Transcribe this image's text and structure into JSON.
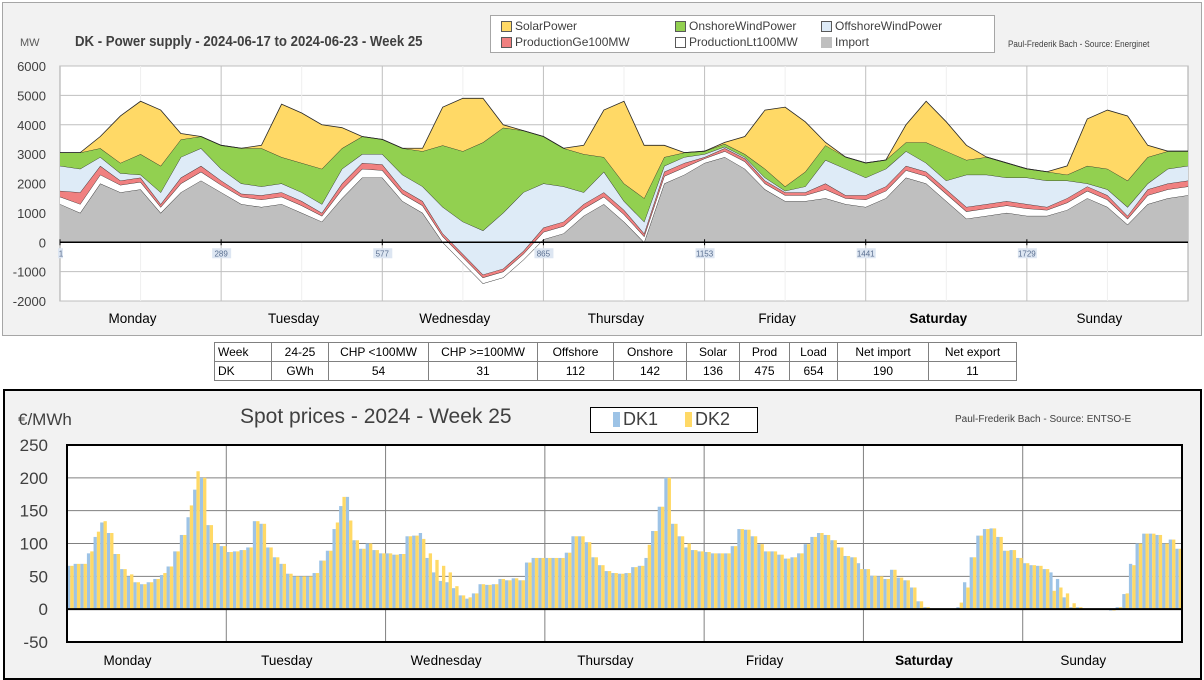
{
  "top": {
    "unit": "MW",
    "title": "DK - Power supply - 2024-06-17 to 2024-06-23 - Week 25",
    "source": "Paul-Frederik Bach - Source: Energinet"
  },
  "table": {
    "header": [
      "Week",
      "24-25",
      "CHP <100MW",
      "CHP >=100MW",
      "Offshore",
      "Onshore",
      "Solar",
      "Prod",
      "Load",
      "Net import",
      "Net export"
    ],
    "row": [
      "DK",
      "GWh",
      "54",
      "31",
      "112",
      "142",
      "136",
      "475",
      "654",
      "190",
      "11"
    ]
  },
  "bottom": {
    "unit": "€/MWh",
    "title": "Spot prices - 2024 - Week 25",
    "source": "Paul-Frederik Bach - Source: ENTSO-E"
  },
  "chart_data": [
    {
      "type": "area",
      "stacked": true,
      "title": "DK - Power supply - 2024-06-17 to 2024-06-23 - Week 25",
      "ylabel": "MW",
      "ylim": [
        -2000,
        6000
      ],
      "yticks": [
        -2000,
        -1000,
        0,
        1000,
        2000,
        3000,
        4000,
        5000,
        6000
      ],
      "xlim": [
        1,
        2017
      ],
      "xticks": [
        1,
        289,
        577,
        865,
        1153,
        1441,
        1729
      ],
      "day_labels": [
        "Monday",
        "Tuesday",
        "Wednesday",
        "Thursday",
        "Friday",
        "Saturday",
        "Sunday"
      ],
      "grid": true,
      "legend": "top-center",
      "x": [
        1,
        37,
        73,
        109,
        145,
        181,
        217,
        253,
        289,
        325,
        361,
        397,
        433,
        469,
        505,
        541,
        577,
        613,
        649,
        685,
        721,
        757,
        793,
        829,
        865,
        901,
        937,
        973,
        1009,
        1045,
        1081,
        1117,
        1153,
        1189,
        1225,
        1261,
        1297,
        1333,
        1369,
        1405,
        1441,
        1477,
        1513,
        1549,
        1585,
        1621,
        1657,
        1693,
        1729,
        1765,
        1801,
        1837,
        1873,
        1909,
        1945,
        1981,
        2017
      ],
      "series": [
        {
          "name": "Import",
          "color": "#bfbfbf",
          "values": [
            1300,
            1000,
            2000,
            1700,
            1800,
            1000,
            1700,
            2100,
            1700,
            1300,
            1200,
            1300,
            1000,
            700,
            1500,
            2200,
            2200,
            1400,
            1000,
            0,
            -700,
            -1400,
            -1200,
            -600,
            100,
            300,
            900,
            1300,
            700,
            0,
            2000,
            2300,
            2700,
            2900,
            2500,
            1800,
            1400,
            1400,
            1500,
            1300,
            1200,
            1500,
            2200,
            2000,
            1400,
            800,
            900,
            1000,
            900,
            900,
            1100,
            1500,
            1200,
            600,
            1300,
            1500,
            1600
          ]
        },
        {
          "name": "ProductionLt100MW",
          "color": "#ffffff",
          "values": [
            250,
            300,
            300,
            250,
            250,
            200,
            300,
            300,
            250,
            250,
            250,
            250,
            250,
            200,
            300,
            300,
            250,
            250,
            250,
            200,
            200,
            200,
            200,
            200,
            250,
            250,
            250,
            250,
            250,
            200,
            250,
            250,
            150,
            200,
            250,
            200,
            200,
            200,
            300,
            200,
            250,
            250,
            250,
            250,
            250,
            250,
            250,
            250,
            250,
            200,
            250,
            250,
            250,
            200,
            300,
            300,
            300
          ]
        },
        {
          "name": "ProductionGe100MW",
          "color": "#f08080",
          "values": [
            200,
            400,
            300,
            150,
            150,
            100,
            200,
            200,
            150,
            100,
            150,
            150,
            150,
            100,
            200,
            200,
            200,
            150,
            150,
            100,
            100,
            100,
            100,
            100,
            150,
            150,
            150,
            150,
            150,
            100,
            150,
            150,
            50,
            100,
            100,
            100,
            100,
            100,
            200,
            100,
            150,
            150,
            150,
            150,
            150,
            150,
            150,
            150,
            150,
            100,
            150,
            150,
            150,
            100,
            200,
            200,
            200
          ]
        },
        {
          "name": "OffshoreWindPower",
          "color": "#deebf7",
          "values": [
            850,
            800,
            300,
            250,
            100,
            400,
            700,
            600,
            400,
            350,
            300,
            300,
            300,
            300,
            500,
            300,
            350,
            500,
            500,
            900,
            1100,
            1500,
            1900,
            2000,
            1500,
            1200,
            400,
            700,
            300,
            400,
            200,
            200,
            100,
            50,
            50,
            100,
            50,
            200,
            800,
            900,
            600,
            600,
            500,
            300,
            300,
            1100,
            1000,
            800,
            900,
            900,
            600,
            100,
            200,
            300,
            200,
            500,
            500
          ]
        },
        {
          "name": "OnshoreWindPower",
          "color": "#92d050",
          "values": [
            450,
            550,
            300,
            350,
            700,
            900,
            600,
            400,
            800,
            1200,
            1300,
            900,
            1000,
            1200,
            700,
            600,
            500,
            900,
            1200,
            2100,
            2400,
            3000,
            2900,
            2100,
            1600,
            1300,
            1300,
            500,
            600,
            800,
            300,
            150,
            100,
            100,
            100,
            300,
            150,
            500,
            500,
            400,
            500,
            300,
            300,
            700,
            1000,
            500,
            600,
            500,
            300,
            300,
            200,
            600,
            700,
            900,
            900,
            600,
            500
          ]
        },
        {
          "name": "SolarPower",
          "color": "#ffd966",
          "values": [
            0,
            0,
            400,
            1600,
            1800,
            1900,
            200,
            0,
            0,
            0,
            100,
            1800,
            1700,
            1500,
            700,
            0,
            0,
            0,
            100,
            1300,
            1800,
            1500,
            100,
            0,
            0,
            0,
            300,
            1600,
            2800,
            1800,
            400,
            0,
            0,
            50,
            600,
            2000,
            2700,
            1700,
            100,
            0,
            0,
            0,
            600,
            1400,
            1000,
            500,
            0,
            0,
            0,
            0,
            300,
            1600,
            2000,
            2200,
            400,
            0,
            0
          ]
        }
      ]
    },
    {
      "type": "bar",
      "title": "Spot prices - 2024 - Week 25",
      "ylabel": "€/MWh",
      "ylim": [
        -50,
        250
      ],
      "yticks": [
        -50,
        0,
        50,
        100,
        150,
        200,
        250
      ],
      "day_labels": [
        "Monday",
        "Tuesday",
        "Wednesday",
        "Thursday",
        "Friday",
        "Saturday",
        "Sunday"
      ],
      "grid": true,
      "legend": "top-center",
      "series": [
        {
          "name": "DK1",
          "color": "#9dc3e6",
          "values": [
            66,
            69,
            69,
            85,
            110,
            132,
            116,
            84,
            61,
            50,
            41,
            38,
            41,
            46,
            52,
            65,
            88,
            113,
            140,
            182,
            200,
            128,
            100,
            96,
            87,
            88,
            90,
            94,
            134,
            130,
            94,
            79,
            69,
            54,
            50,
            50,
            50,
            55,
            74,
            89,
            122,
            157,
            171,
            105,
            92,
            100,
            90,
            85,
            85,
            83,
            84,
            111,
            112,
            116,
            78,
            56,
            43,
            41,
            32,
            21,
            16,
            24,
            38,
            37,
            38,
            46,
            44,
            47,
            44,
            71,
            78,
            78,
            78,
            78,
            78,
            86,
            111,
            111,
            102,
            79,
            67,
            58,
            55,
            54,
            55,
            64,
            66,
            78,
            119,
            156,
            200,
            130,
            111,
            94,
            90,
            88,
            87,
            85,
            85,
            85,
            96,
            122,
            121,
            111,
            99,
            88,
            88,
            83,
            77,
            79,
            85,
            99,
            110,
            116,
            113,
            105,
            94,
            81,
            79,
            70,
            61,
            51,
            50,
            46,
            60,
            48,
            44,
            33,
            12,
            3,
            1,
            0,
            -1,
            0,
            3,
            41,
            79,
            112,
            122,
            123,
            110,
            89,
            90,
            78,
            70,
            67,
            66,
            61,
            56,
            46,
            18,
            3,
            3,
            0,
            0,
            0,
            0,
            -2,
            3,
            23,
            69,
            100,
            115,
            115,
            113,
            100,
            106,
            92
          ]
        },
        {
          "name": "DK2",
          "color": "#ffd966",
          "values": [
            66,
            69,
            69,
            88,
            118,
            134,
            116,
            84,
            61,
            53,
            41,
            38,
            41,
            46,
            55,
            65,
            88,
            113,
            158,
            210,
            200,
            128,
            100,
            96,
            87,
            88,
            90,
            94,
            134,
            130,
            94,
            79,
            69,
            54,
            50,
            50,
            50,
            55,
            74,
            89,
            132,
            171,
            135,
            105,
            92,
            100,
            90,
            85,
            85,
            83,
            84,
            111,
            112,
            107,
            85,
            75,
            66,
            56,
            35,
            21,
            18,
            24,
            38,
            37,
            38,
            46,
            44,
            47,
            44,
            71,
            78,
            78,
            78,
            78,
            78,
            86,
            111,
            111,
            102,
            79,
            67,
            58,
            55,
            54,
            55,
            64,
            66,
            98,
            119,
            156,
            200,
            130,
            111,
            100,
            90,
            88,
            87,
            85,
            85,
            85,
            96,
            122,
            121,
            111,
            99,
            88,
            88,
            83,
            77,
            79,
            85,
            99,
            110,
            116,
            113,
            105,
            94,
            81,
            79,
            61,
            61,
            51,
            50,
            46,
            60,
            48,
            44,
            33,
            12,
            3,
            1,
            0,
            0,
            0,
            10,
            33,
            79,
            112,
            122,
            123,
            110,
            89,
            90,
            78,
            70,
            67,
            66,
            61,
            28,
            33,
            24,
            9,
            3,
            0,
            0,
            0,
            0,
            -2,
            3,
            24,
            67,
            100,
            115,
            115,
            113,
            100,
            106,
            92
          ]
        }
      ]
    }
  ]
}
